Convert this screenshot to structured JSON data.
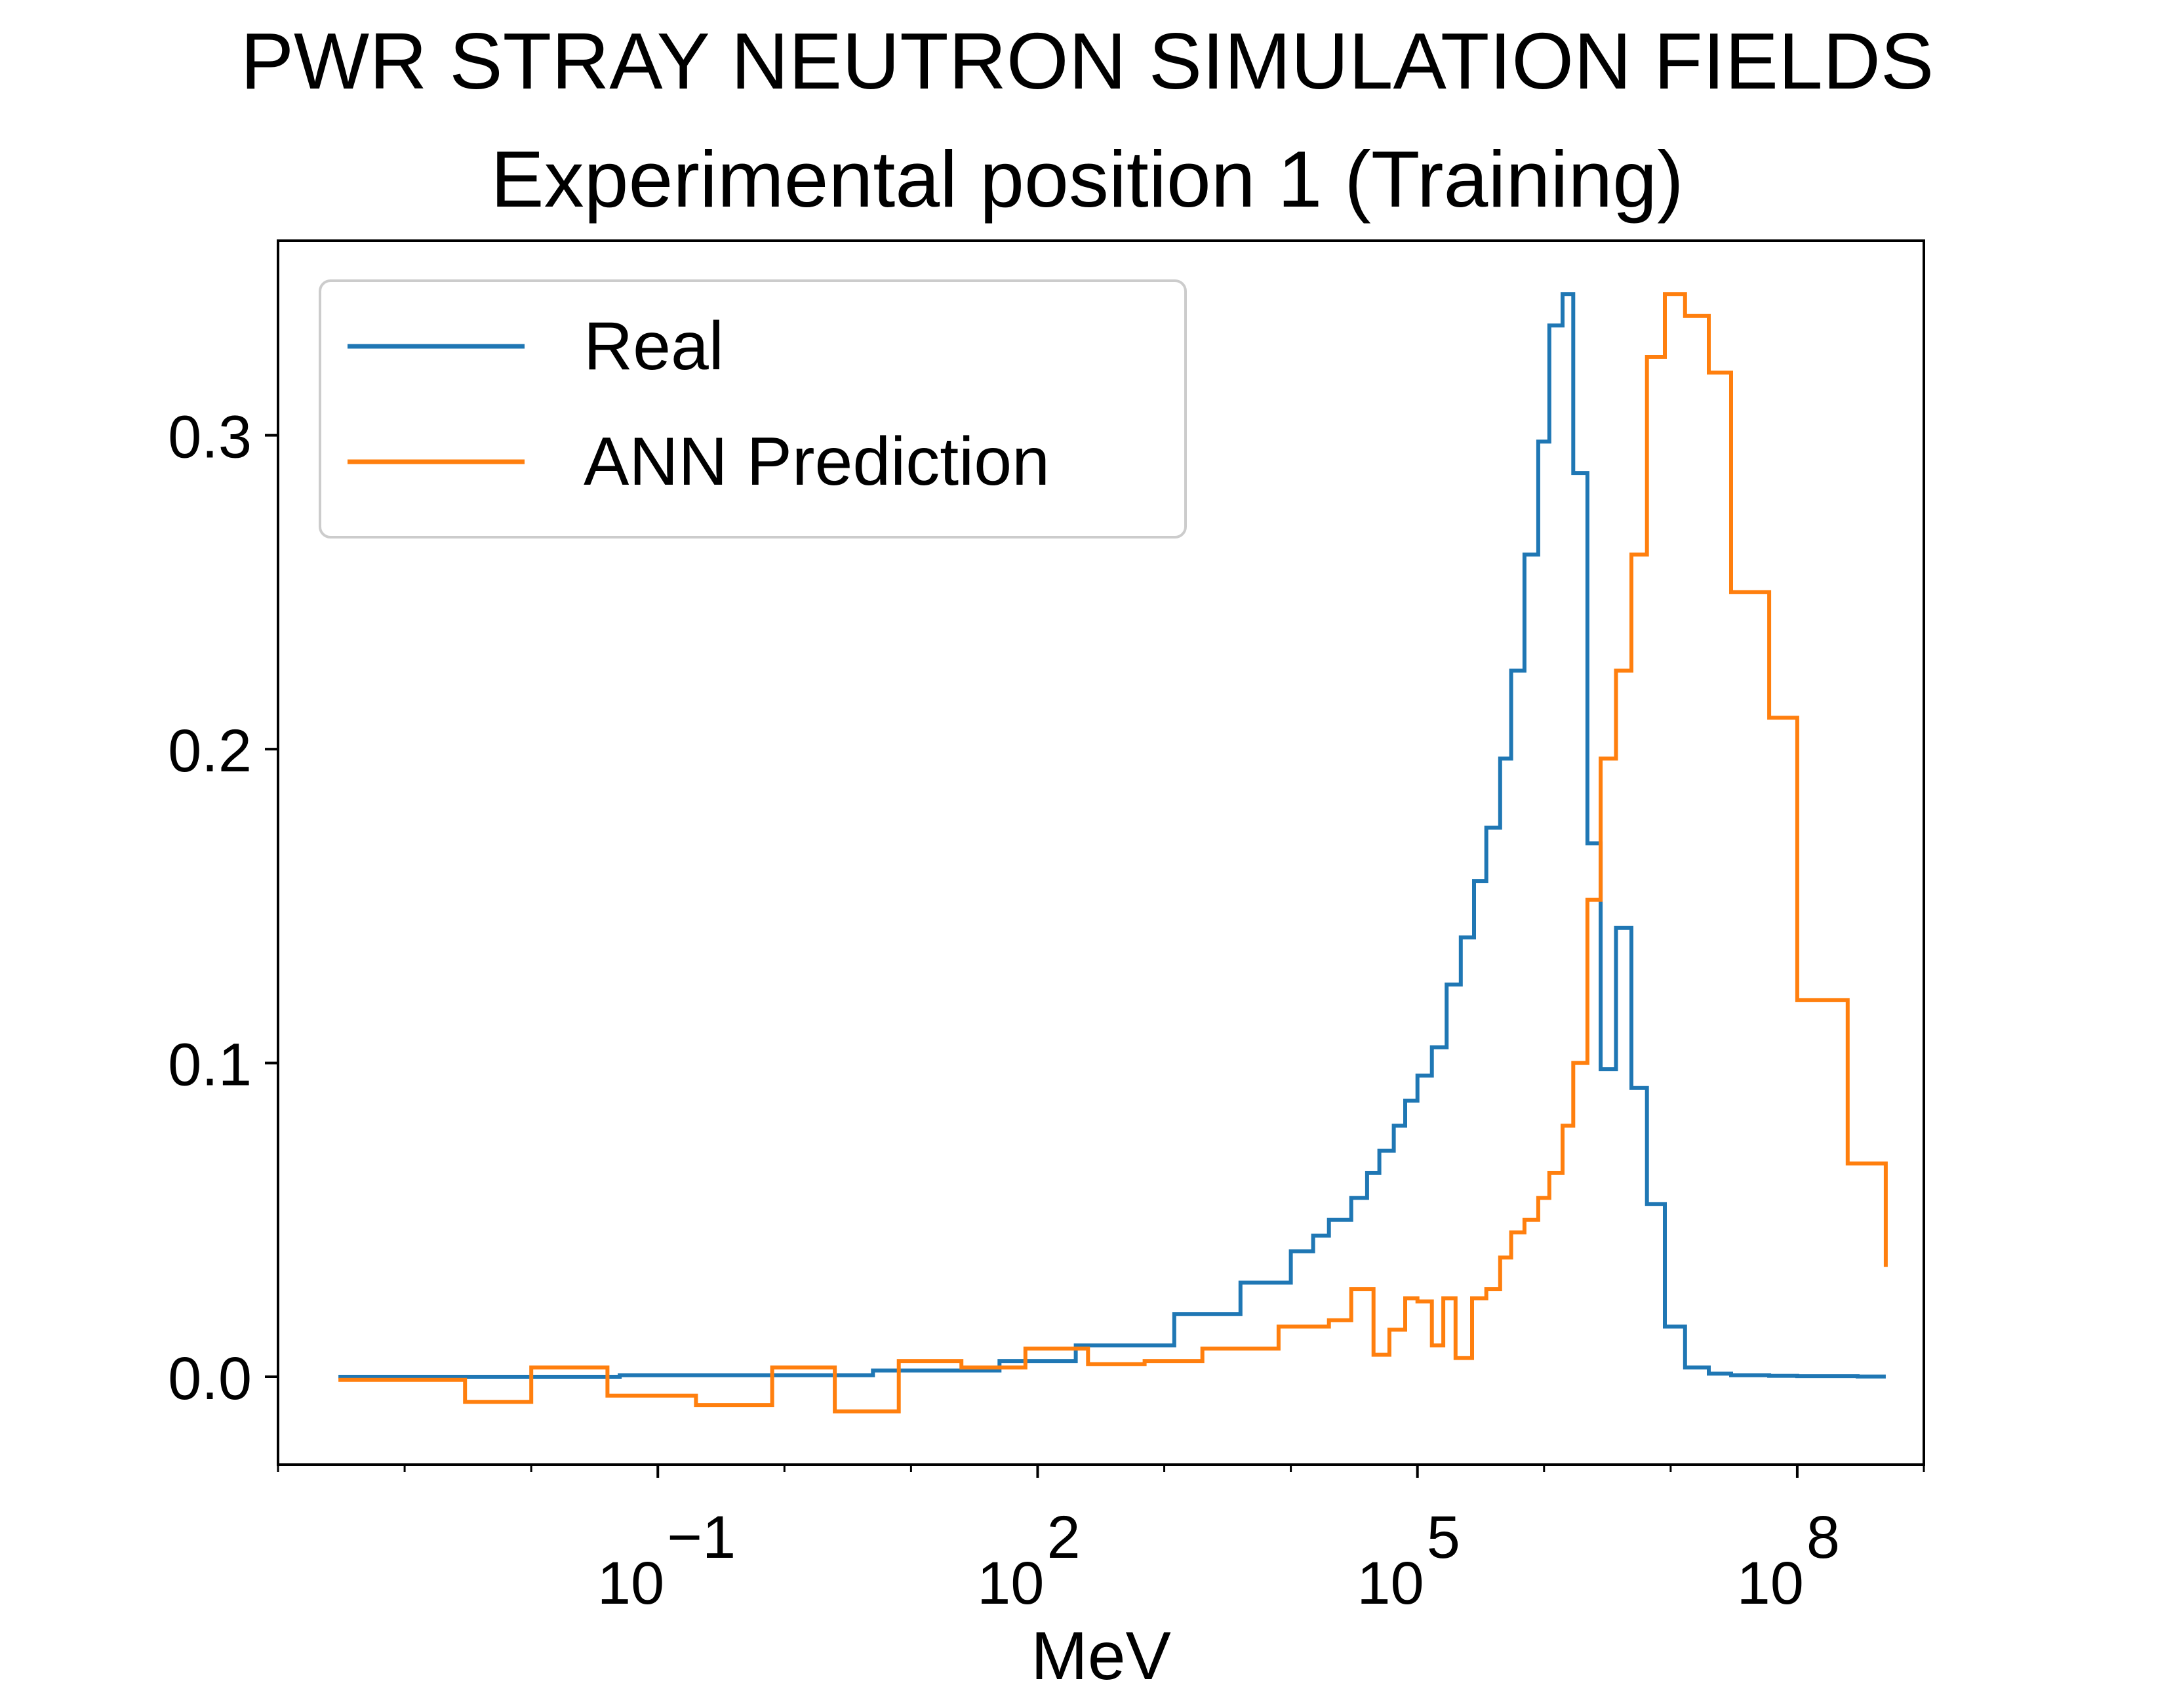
{
  "chart_data": {
    "type": "line",
    "step": true,
    "title": "PWR STRAY NEUTRON SIMULATION FIELDS",
    "subtitle": "Experimental position 1 (Training)",
    "xlabel": "MeV",
    "ylabel": "",
    "xscale": "log",
    "xlim": [
      0.0001,
      1000000000.0
    ],
    "ylim": [
      -0.028,
      0.362
    ],
    "x_ticks": [
      {
        "value": 0.1,
        "base": "10",
        "exp": "−1"
      },
      {
        "value": 100,
        "base": "10",
        "exp": "2"
      },
      {
        "value": 100000,
        "base": "10",
        "exp": "5"
      },
      {
        "value": 100000000,
        "base": "10",
        "exp": "8"
      }
    ],
    "y_ticks": [
      {
        "value": 0.0,
        "label": "0.0"
      },
      {
        "value": 0.1,
        "label": "0.1"
      },
      {
        "value": 0.2,
        "label": "0.2"
      },
      {
        "value": 0.3,
        "label": "0.3"
      }
    ],
    "grid": false,
    "legend_position": "top-left",
    "series": [
      {
        "name": "Real",
        "color": "#1f77b4",
        "x": [
          0.0003,
          0.05,
          5,
          50,
          200,
          1200,
          4000,
          10000,
          15000,
          20000,
          30000,
          40000,
          50000,
          65000,
          80000,
          100000,
          130000,
          170000,
          220000,
          280000,
          350000,
          450000,
          550000,
          700000,
          900000,
          1100000,
          1400000,
          1700000,
          2200000,
          2800000,
          3700000,
          4900000,
          6500000,
          9000000,
          13000000,
          20000000,
          30000000,
          60000000,
          100000000,
          300000000,
          500000000
        ],
        "y": [
          0.0,
          0.0005,
          0.002,
          0.005,
          0.01,
          0.02,
          0.03,
          0.04,
          0.045,
          0.05,
          0.057,
          0.065,
          0.072,
          0.08,
          0.088,
          0.096,
          0.105,
          0.125,
          0.14,
          0.158,
          0.175,
          0.197,
          0.225,
          0.262,
          0.298,
          0.335,
          0.345,
          0.288,
          0.17,
          0.098,
          0.143,
          0.092,
          0.055,
          0.016,
          0.003,
          0.001,
          0.0005,
          0.0003,
          0.0002,
          0.0001,
          0.0001
        ]
      },
      {
        "name": "ANN Prediction",
        "color": "#ff7f0e",
        "x": [
          0.0003,
          0.003,
          0.01,
          0.04,
          0.2,
          0.8,
          2.5,
          8,
          25,
          80,
          250,
          700,
          2000,
          8000,
          20000,
          30000,
          45000,
          60000,
          80000,
          100000,
          130000,
          160000,
          200000,
          270000,
          350000,
          450000,
          550000,
          700000,
          900000,
          1100000,
          1400000,
          1700000,
          2200000,
          2800000,
          3700000,
          4900000,
          6500000,
          9000000,
          13000000,
          20000000,
          30000000,
          60000000,
          100000000,
          250000000,
          500000000
        ],
        "y": [
          -0.001,
          -0.008,
          0.003,
          -0.006,
          -0.009,
          0.003,
          -0.011,
          0.005,
          0.003,
          0.009,
          0.004,
          0.005,
          0.009,
          0.016,
          0.018,
          0.028,
          0.007,
          0.015,
          0.025,
          0.024,
          0.01,
          0.025,
          0.006,
          0.025,
          0.028,
          0.038,
          0.046,
          0.05,
          0.057,
          0.065,
          0.08,
          0.1,
          0.152,
          0.197,
          0.225,
          0.262,
          0.325,
          0.345,
          0.338,
          0.32,
          0.25,
          0.21,
          0.12,
          0.068,
          0.035
        ]
      }
    ]
  }
}
